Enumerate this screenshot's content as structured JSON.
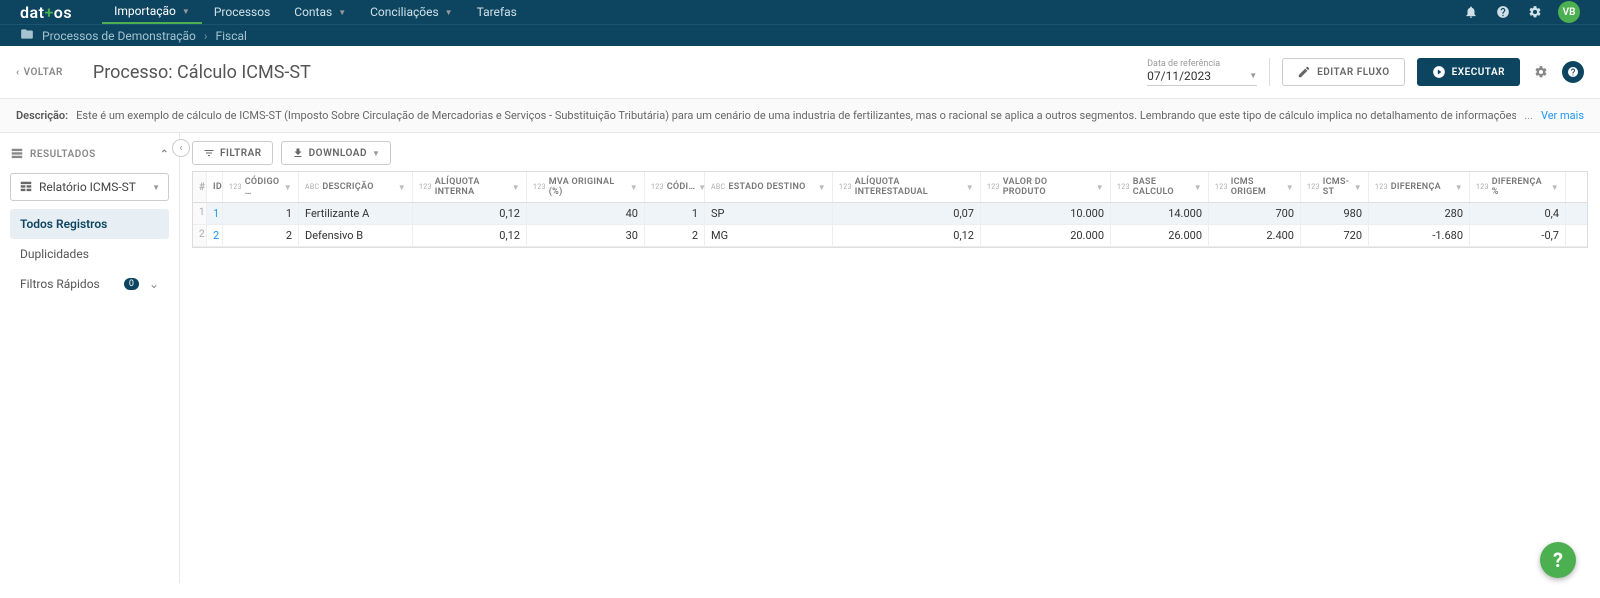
{
  "brand": {
    "pre": "dat",
    "plus": "+",
    "post": "os"
  },
  "nav": {
    "items": [
      {
        "label": "Importação",
        "dd": true,
        "active": true
      },
      {
        "label": "Processos"
      },
      {
        "label": "Contas",
        "dd": true
      },
      {
        "label": "Conciliações",
        "dd": true
      },
      {
        "label": "Tarefas"
      }
    ],
    "avatar": "VB"
  },
  "breadcrumb": {
    "a": "Processos de Demonstração",
    "b": "Fiscal"
  },
  "header": {
    "back": "VOLTAR",
    "title": "Processo: Cálculo ICMS-ST",
    "date_ref_label": "Data de referência",
    "date_ref_value": "07/11/2023",
    "edit_btn": "EDITAR FLUXO",
    "run_btn": "EXECUTAR"
  },
  "desc": {
    "label": "Descrição:",
    "text": "Este é um exemplo de cálculo de ICMS-ST (Imposto Sobre Circulação de Mercadorias e Serviços - Substituição Tributária) para um cenário de uma industria de fertilizantes, mas o racional se aplica a outros segmentos. Lembrando que este tipo de cálculo implica no detalhamento de informações, como:",
    "more_prefix": "... ",
    "more": "Ver mais"
  },
  "sidebar": {
    "header": "RESULTADOS",
    "select": "Relatório ICMS-ST",
    "items": [
      {
        "label": "Todos Registros",
        "active": true
      },
      {
        "label": "Duplicidades"
      },
      {
        "label": "Filtros Rápidos",
        "badge": "0",
        "expand": true
      }
    ]
  },
  "toolbar": {
    "filter": "FILTRAR",
    "download": "DOWNLOAD"
  },
  "grid": {
    "columns": [
      {
        "k": "idx",
        "label": "#",
        "cls": "c-idx"
      },
      {
        "k": "id",
        "label": "ID",
        "cls": "c-id"
      },
      {
        "k": "cod",
        "label": "CÓDIGO …",
        "typ": "123",
        "cls": "c-cod",
        "dd": true
      },
      {
        "k": "desc",
        "label": "DESCRIÇÃO",
        "typ": "ABC",
        "cls": "c-desc",
        "dd": true
      },
      {
        "k": "aliq",
        "label": "ALÍQUOTA INTERNA",
        "typ": "123",
        "cls": "c-aliq",
        "dd": true
      },
      {
        "k": "mva",
        "label": "MVA ORIGINAL (%)",
        "typ": "123",
        "cls": "c-mva",
        "dd": true
      },
      {
        "k": "cod2",
        "label": "CÓDI…",
        "typ": "123",
        "cls": "c-cod2",
        "dd": true
      },
      {
        "k": "est",
        "label": "ESTADO DESTINO",
        "typ": "ABC",
        "cls": "c-est",
        "dd": true
      },
      {
        "k": "aliqi",
        "label": "ALÍQUOTA INTERESTADUAL",
        "typ": "123",
        "cls": "c-aliqi",
        "dd": true
      },
      {
        "k": "valp",
        "label": "VALOR DO PRODUTO",
        "typ": "123",
        "cls": "c-valp",
        "dd": true
      },
      {
        "k": "base",
        "label": "BASE CALCULO",
        "typ": "123",
        "cls": "c-base",
        "dd": true
      },
      {
        "k": "icmso",
        "label": "ICMS ORIGEM",
        "typ": "123",
        "cls": "c-icmso",
        "dd": true
      },
      {
        "k": "icmsst",
        "label": "ICMS-ST",
        "typ": "123",
        "cls": "c-icmsst",
        "dd": true
      },
      {
        "k": "dif",
        "label": "DIFERENÇA",
        "typ": "123",
        "cls": "c-dif",
        "dd": true
      },
      {
        "k": "difp",
        "label": "DIFERENÇA %",
        "typ": "123",
        "cls": "c-difp",
        "dd": true
      }
    ],
    "rows": [
      {
        "idx": "1",
        "id": "1",
        "cod": "1",
        "desc": "Fertilizante A",
        "aliq": "0,12",
        "mva": "40",
        "cod2": "1",
        "est": "SP",
        "aliqi": "0,07",
        "valp": "10.000",
        "base": "14.000",
        "icmso": "700",
        "icmsst": "980",
        "dif": "280",
        "difp": "0,4",
        "sel": true
      },
      {
        "idx": "2",
        "id": "2",
        "cod": "2",
        "desc": "Defensivo B",
        "aliq": "0,12",
        "mva": "30",
        "cod2": "2",
        "est": "MG",
        "aliqi": "0,12",
        "valp": "20.000",
        "base": "26.000",
        "icmso": "2.400",
        "icmsst": "720",
        "dif": "-1.680",
        "difp": "-0,7"
      }
    ],
    "numeric": [
      "cod",
      "aliq",
      "mva",
      "cod2",
      "aliqi",
      "valp",
      "base",
      "icmso",
      "icmsst",
      "dif",
      "difp"
    ]
  },
  "help": "?"
}
